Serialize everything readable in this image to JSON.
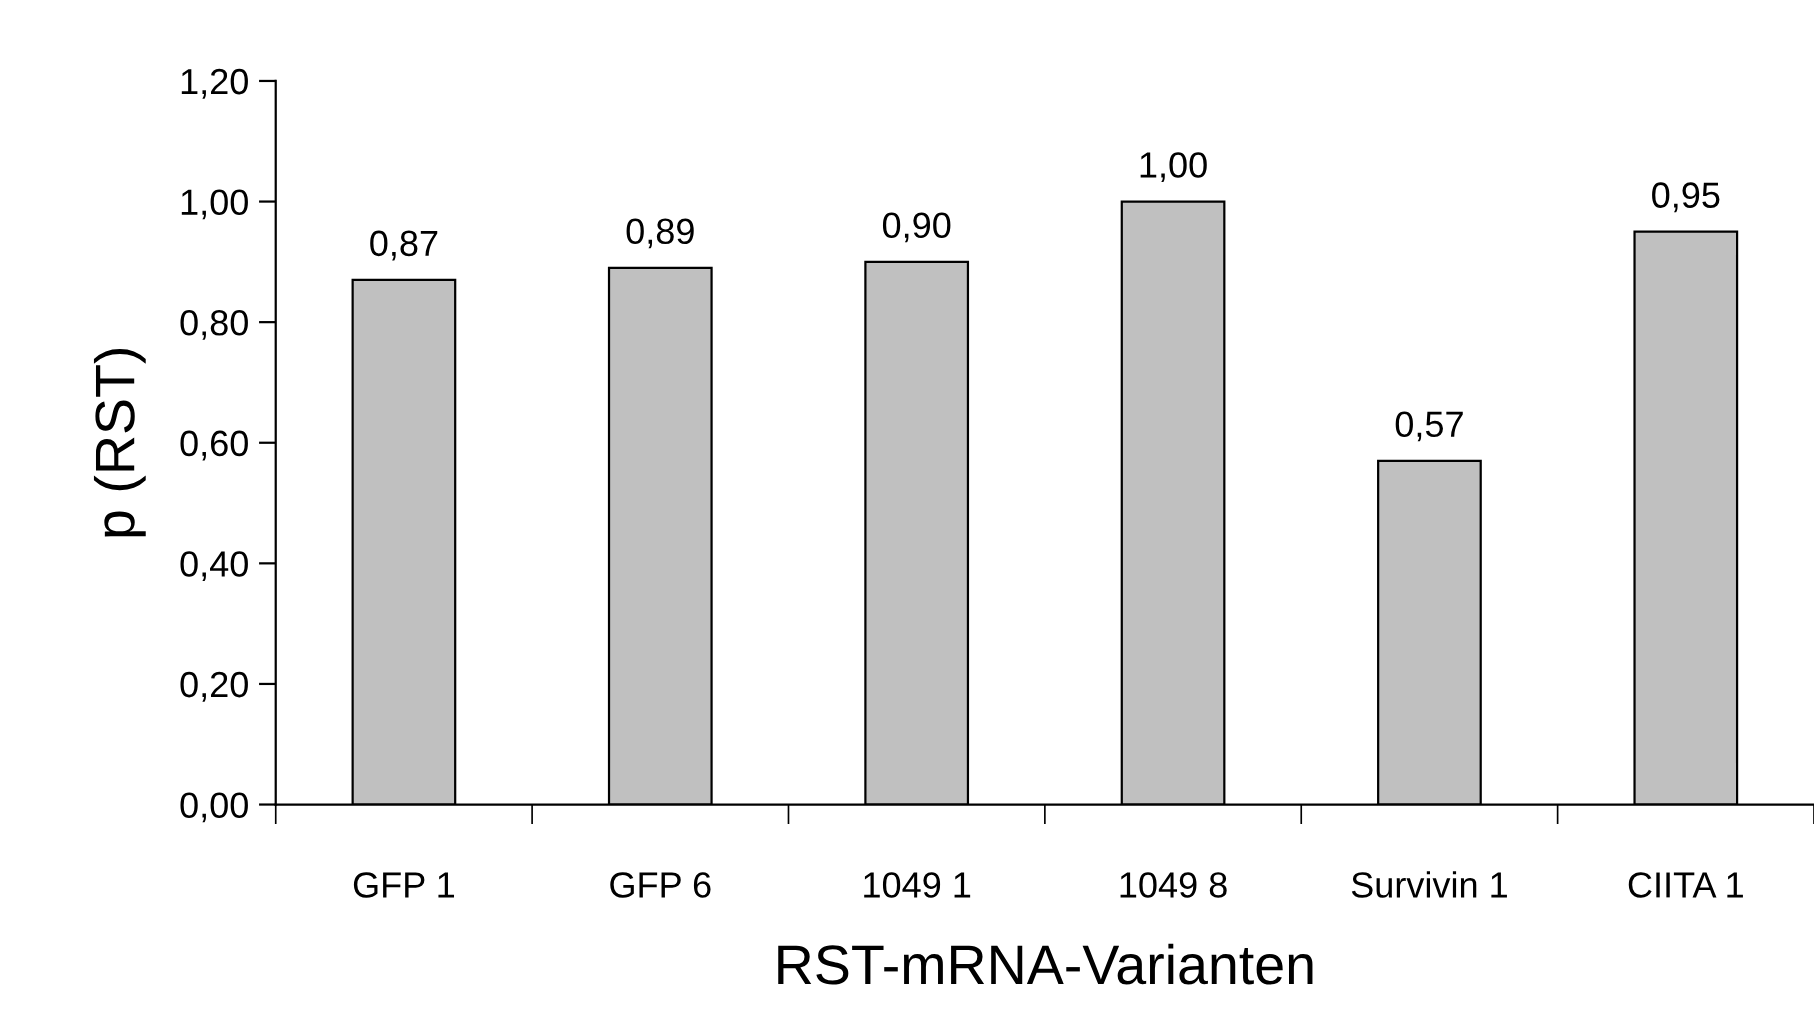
{
  "chart_data": {
    "type": "bar",
    "xlabel": "RST-mRNA-Varianten",
    "ylabel": "p (RST)",
    "categories": [
      "GFP 1",
      "GFP 6",
      "1049 1",
      "1049 8",
      "Survivin 1",
      "CIITA 1"
    ],
    "values": [
      0.87,
      0.89,
      0.9,
      1.0,
      0.57,
      0.95
    ],
    "value_labels": [
      "0,87",
      "0,89",
      "0,90",
      "1,00",
      "0,57",
      "0,95"
    ],
    "color": "#c0c0c0",
    "ylim": [
      0,
      1.2
    ],
    "yticks": [
      {
        "value": 0,
        "label": "0,00"
      },
      {
        "value": 0.2,
        "label": "0,20"
      },
      {
        "value": 0.4,
        "label": "0,40"
      },
      {
        "value": 0.6,
        "label": "0,60"
      },
      {
        "value": 0.8,
        "label": "0,80"
      },
      {
        "value": 1.0,
        "label": "1,00"
      },
      {
        "value": 1.2,
        "label": "1,20"
      }
    ],
    "grid": false,
    "legend": false
  }
}
